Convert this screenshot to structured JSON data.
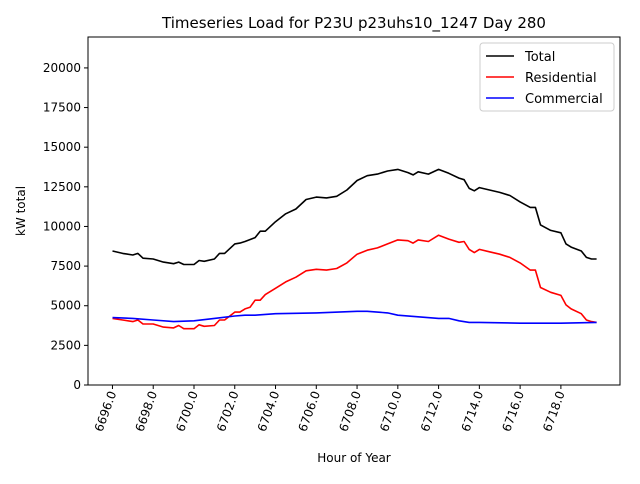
{
  "chart_data": {
    "type": "line",
    "title": "Timeseries Load for P23U p23uhs10_1247  Day 280",
    "xlabel": "Hour of Year",
    "ylabel": "kW total",
    "xlim": [
      6694.8,
      6720.9
    ],
    "ylim": [
      0,
      21950
    ],
    "xticks": [
      6696,
      6698,
      6700,
      6702,
      6704,
      6706,
      6708,
      6710,
      6712,
      6714,
      6716,
      6718
    ],
    "xtick_labels": [
      "6696.0",
      "6698.0",
      "6700.0",
      "6702.0",
      "6704.0",
      "6706.0",
      "6708.0",
      "6710.0",
      "6712.0",
      "6714.0",
      "6716.0",
      "6718.0"
    ],
    "yticks": [
      0,
      2500,
      5000,
      7500,
      10000,
      12500,
      15000,
      17500,
      20000
    ],
    "ytick_labels": [
      "0",
      "2500",
      "5000",
      "7500",
      "10000",
      "12500",
      "15000",
      "17500",
      "20000"
    ],
    "grid": false,
    "legend_position": "top-right",
    "series": [
      {
        "name": "Total",
        "color": "#000000",
        "points": [
          [
            6696,
            8450
          ],
          [
            6696.5,
            8300
          ],
          [
            6697,
            8200
          ],
          [
            6697.25,
            8300
          ],
          [
            6697.5,
            8000
          ],
          [
            6698,
            7950
          ],
          [
            6698.5,
            7750
          ],
          [
            6699,
            7650
          ],
          [
            6699.25,
            7750
          ],
          [
            6699.5,
            7600
          ],
          [
            6700,
            7600
          ],
          [
            6700.25,
            7850
          ],
          [
            6700.5,
            7800
          ],
          [
            6701,
            7950
          ],
          [
            6701.25,
            8300
          ],
          [
            6701.5,
            8300
          ],
          [
            6702,
            8900
          ],
          [
            6702.25,
            8950
          ],
          [
            6702.5,
            9050
          ],
          [
            6703,
            9300
          ],
          [
            6703.25,
            9700
          ],
          [
            6703.5,
            9700
          ],
          [
            6704,
            10300
          ],
          [
            6704.5,
            10800
          ],
          [
            6705,
            11100
          ],
          [
            6705.5,
            11700
          ],
          [
            6706,
            11850
          ],
          [
            6706.5,
            11800
          ],
          [
            6707,
            11900
          ],
          [
            6707.5,
            12300
          ],
          [
            6708,
            12900
          ],
          [
            6708.5,
            13200
          ],
          [
            6709,
            13300
          ],
          [
            6709.5,
            13500
          ],
          [
            6710,
            13600
          ],
          [
            6710.5,
            13400
          ],
          [
            6710.75,
            13250
          ],
          [
            6711,
            13450
          ],
          [
            6711.5,
            13300
          ],
          [
            6712,
            13600
          ],
          [
            6712.5,
            13350
          ],
          [
            6713,
            13050
          ],
          [
            6713.25,
            12950
          ],
          [
            6713.5,
            12400
          ],
          [
            6713.75,
            12250
          ],
          [
            6714,
            12450
          ],
          [
            6714.5,
            12300
          ],
          [
            6715,
            12150
          ],
          [
            6715.5,
            11950
          ],
          [
            6716,
            11550
          ],
          [
            6716.5,
            11200
          ],
          [
            6716.75,
            11200
          ],
          [
            6717,
            10100
          ],
          [
            6717.5,
            9750
          ],
          [
            6718,
            9600
          ],
          [
            6718.25,
            8900
          ],
          [
            6718.5,
            8700
          ],
          [
            6719,
            8450
          ],
          [
            6719.25,
            8050
          ],
          [
            6719.5,
            7950
          ],
          [
            6719.75,
            7950
          ]
        ]
      },
      {
        "name": "Residential",
        "color": "#ff0000",
        "points": [
          [
            6696,
            4200
          ],
          [
            6696.5,
            4100
          ],
          [
            6697,
            4000
          ],
          [
            6697.25,
            4100
          ],
          [
            6697.5,
            3850
          ],
          [
            6698,
            3850
          ],
          [
            6698.5,
            3650
          ],
          [
            6699,
            3600
          ],
          [
            6699.25,
            3750
          ],
          [
            6699.5,
            3550
          ],
          [
            6700,
            3550
          ],
          [
            6700.25,
            3800
          ],
          [
            6700.5,
            3700
          ],
          [
            6701,
            3750
          ],
          [
            6701.25,
            4100
          ],
          [
            6701.5,
            4100
          ],
          [
            6702,
            4600
          ],
          [
            6702.25,
            4600
          ],
          [
            6702.5,
            4800
          ],
          [
            6702.75,
            4900
          ],
          [
            6703,
            5350
          ],
          [
            6703.25,
            5350
          ],
          [
            6703.5,
            5700
          ],
          [
            6704,
            6100
          ],
          [
            6704.5,
            6500
          ],
          [
            6705,
            6800
          ],
          [
            6705.5,
            7200
          ],
          [
            6706,
            7300
          ],
          [
            6706.5,
            7250
          ],
          [
            6707,
            7350
          ],
          [
            6707.5,
            7700
          ],
          [
            6708,
            8250
          ],
          [
            6708.5,
            8500
          ],
          [
            6709,
            8650
          ],
          [
            6709.5,
            8900
          ],
          [
            6710,
            9150
          ],
          [
            6710.5,
            9100
          ],
          [
            6710.75,
            8950
          ],
          [
            6711,
            9150
          ],
          [
            6711.5,
            9050
          ],
          [
            6712,
            9450
          ],
          [
            6712.5,
            9200
          ],
          [
            6713,
            9000
          ],
          [
            6713.25,
            9050
          ],
          [
            6713.5,
            8550
          ],
          [
            6713.75,
            8350
          ],
          [
            6714,
            8550
          ],
          [
            6714.5,
            8400
          ],
          [
            6715,
            8250
          ],
          [
            6715.5,
            8050
          ],
          [
            6716,
            7700
          ],
          [
            6716.5,
            7250
          ],
          [
            6716.75,
            7250
          ],
          [
            6717,
            6150
          ],
          [
            6717.5,
            5850
          ],
          [
            6718,
            5650
          ],
          [
            6718.25,
            5050
          ],
          [
            6718.5,
            4800
          ],
          [
            6719,
            4500
          ],
          [
            6719.25,
            4100
          ],
          [
            6719.5,
            4000
          ],
          [
            6719.75,
            3950
          ]
        ]
      },
      {
        "name": "Commercial",
        "color": "#0000ff",
        "points": [
          [
            6696,
            4250
          ],
          [
            6697,
            4200
          ],
          [
            6698,
            4100
          ],
          [
            6699,
            4000
          ],
          [
            6700,
            4050
          ],
          [
            6701,
            4200
          ],
          [
            6702,
            4350
          ],
          [
            6702.5,
            4400
          ],
          [
            6703,
            4400
          ],
          [
            6704,
            4500
          ],
          [
            6706,
            4550
          ],
          [
            6708,
            4650
          ],
          [
            6708.5,
            4650
          ],
          [
            6709.5,
            4550
          ],
          [
            6710,
            4400
          ],
          [
            6711,
            4300
          ],
          [
            6712,
            4200
          ],
          [
            6712.5,
            4200
          ],
          [
            6713,
            4050
          ],
          [
            6713.5,
            3950
          ],
          [
            6714,
            3950
          ],
          [
            6716,
            3900
          ],
          [
            6718,
            3900
          ],
          [
            6719.75,
            3950
          ]
        ]
      }
    ]
  }
}
